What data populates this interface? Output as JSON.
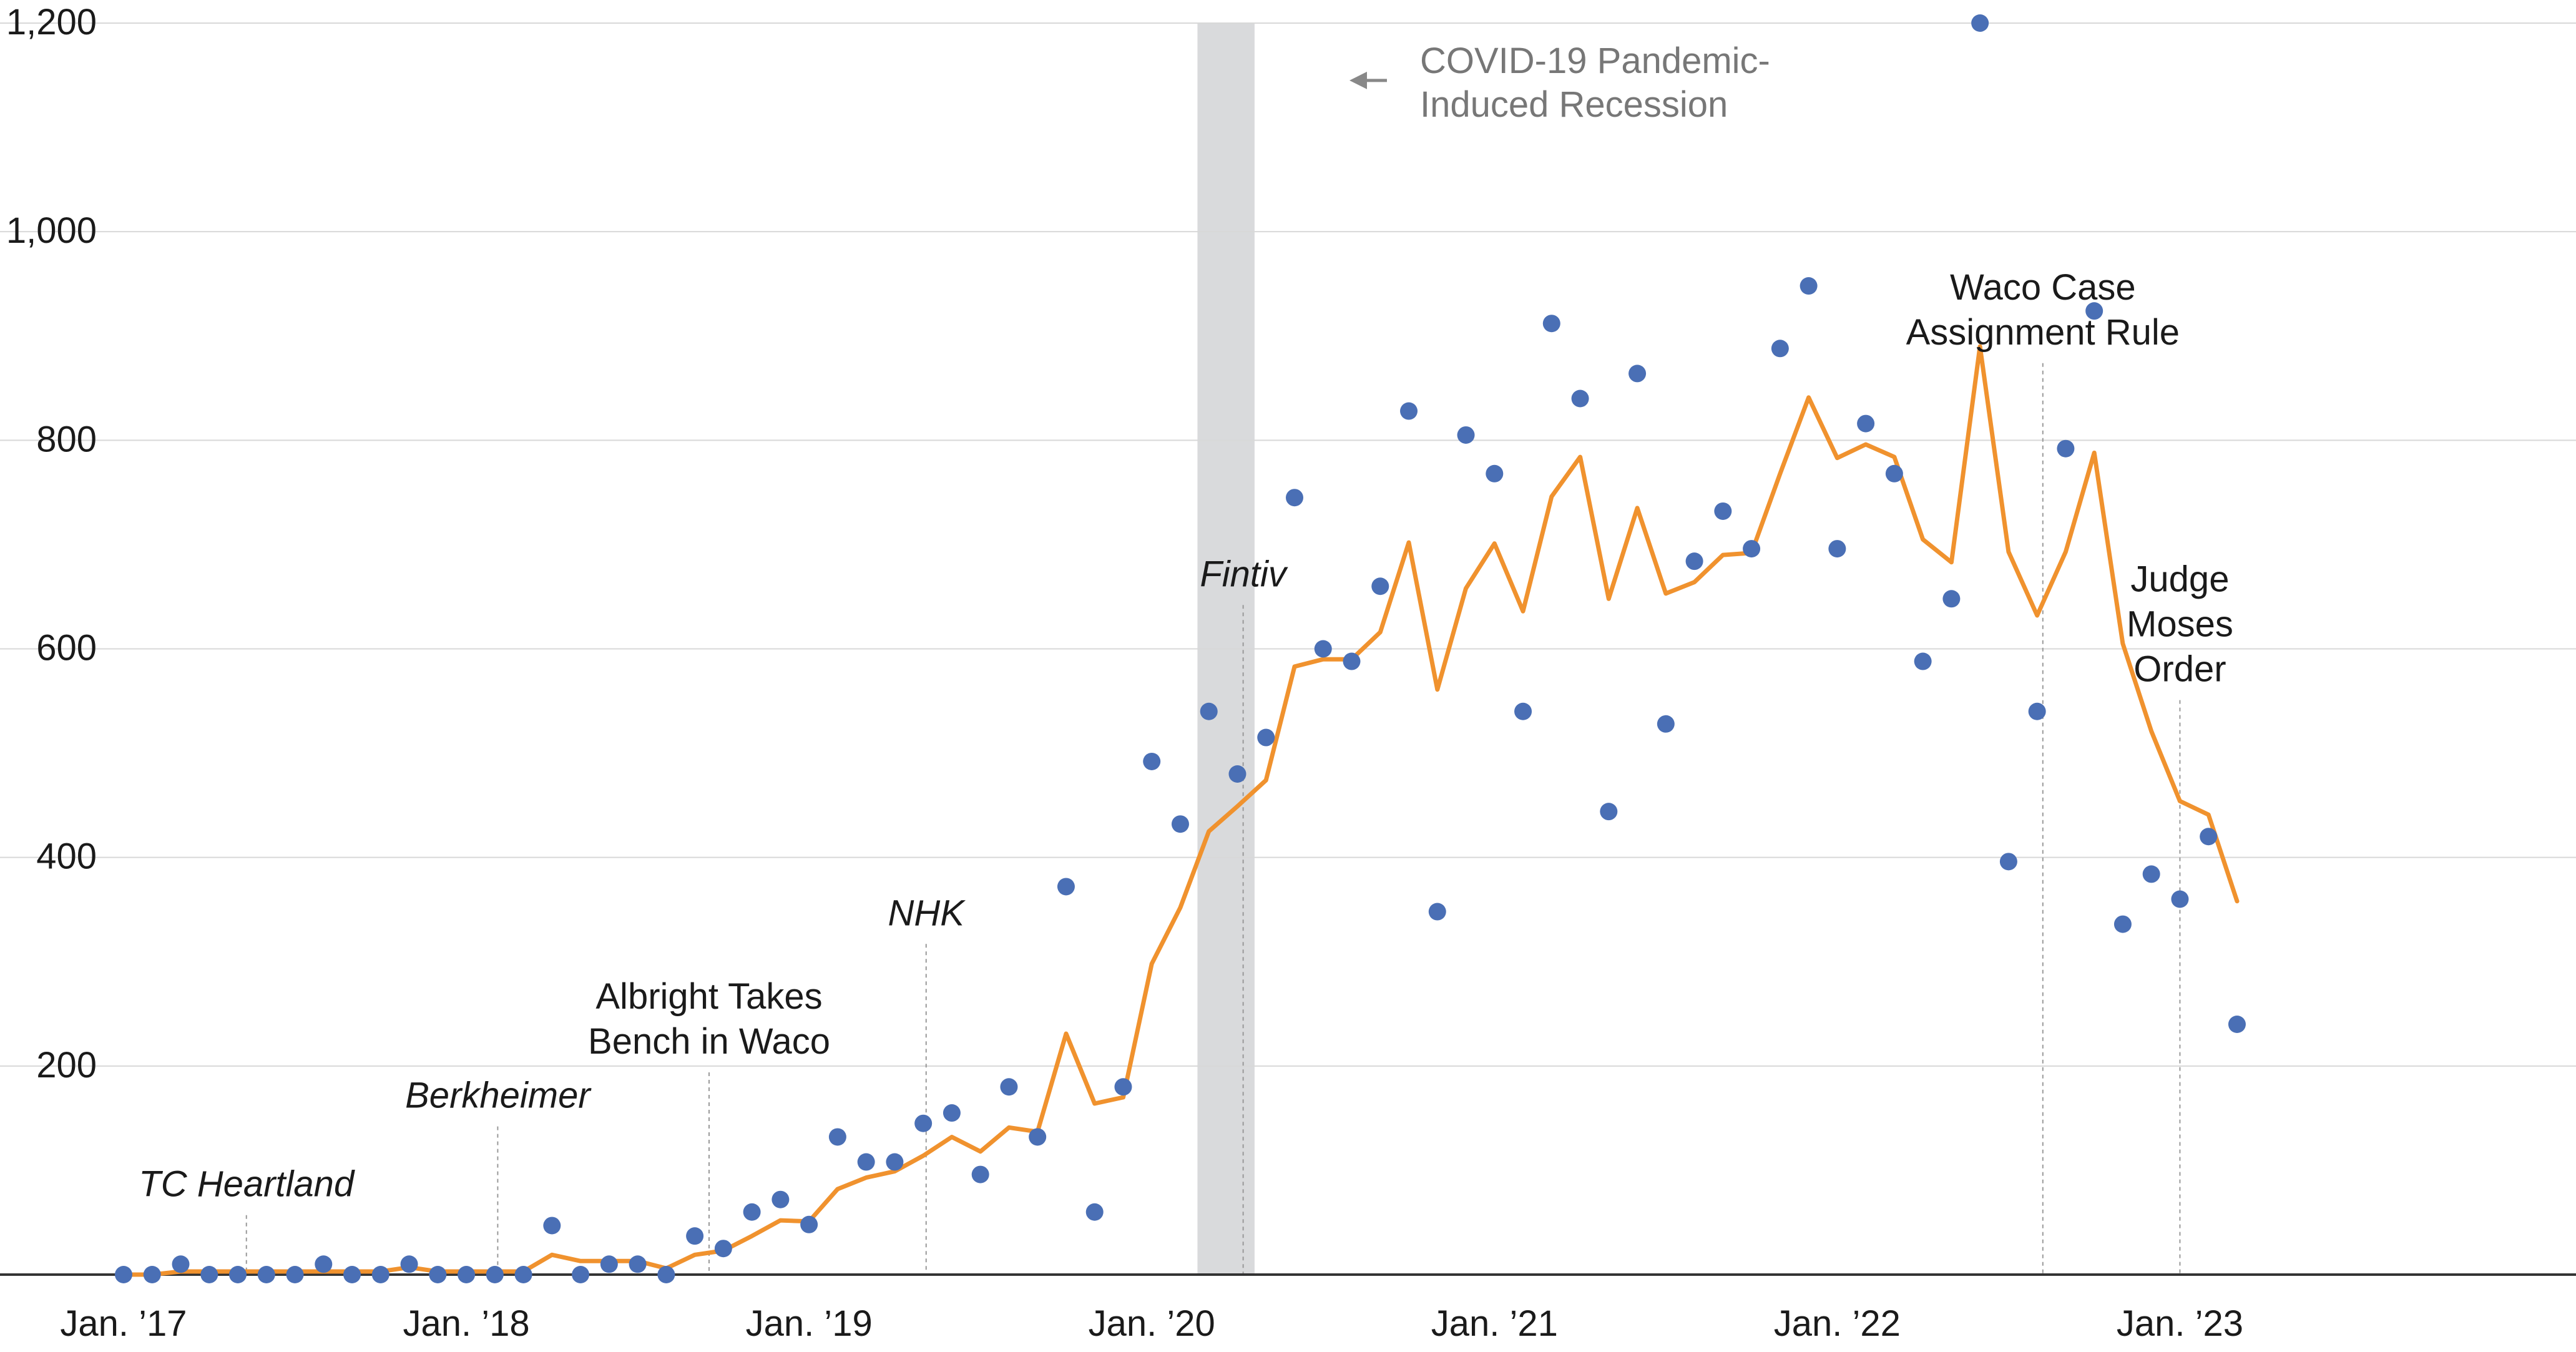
{
  "chart_data": {
    "type": "line",
    "title": "",
    "xlabel": "",
    "ylabel": "",
    "ylim": [
      0,
      1200
    ],
    "yticks": [
      200,
      400,
      600,
      800,
      1000,
      1200
    ],
    "ytick_labels": [
      "200",
      "400",
      "600",
      "800",
      "1,000",
      "1,200"
    ],
    "xlim": [
      0,
      82
    ],
    "xticks": [
      0,
      12,
      24,
      36,
      48,
      60,
      72
    ],
    "xtick_labels": [
      "Jan. ’17",
      "Jan. ’18",
      "Jan. ’19",
      "Jan. ’20",
      "Jan. ’21",
      "Jan. ’22",
      "Jan. ’23"
    ],
    "grid": true,
    "legend": "none",
    "colors": {
      "points": "#4a6fb5",
      "line": "#f0922e",
      "recession": "#d9dadc",
      "grid": "#d8d8d8",
      "axis": "#333333",
      "annotation_line": "#999999",
      "recession_text": "#777777"
    },
    "series": [
      {
        "kind": "scatter",
        "values": [
          0,
          0,
          10,
          0,
          0,
          0,
          0,
          10,
          0,
          0,
          10,
          0,
          0,
          0,
          0,
          47,
          0,
          10,
          10,
          0,
          37,
          25,
          60,
          72,
          48,
          132,
          108,
          108,
          145,
          155,
          96,
          180,
          132,
          372,
          60,
          180,
          492,
          432,
          540,
          480,
          515,
          745,
          600,
          588,
          660,
          828,
          348,
          805,
          768,
          540,
          912,
          840,
          444,
          864,
          528,
          684,
          732,
          696,
          888,
          948,
          696,
          816,
          768,
          588,
          648,
          1200,
          396,
          540,
          792,
          924,
          336,
          384,
          360,
          420,
          240
        ]
      },
      {
        "kind": "line",
        "values": [
          0,
          0,
          3,
          3,
          3,
          3,
          3,
          3,
          3,
          3,
          7,
          3,
          3,
          3,
          3,
          19,
          13,
          13,
          13,
          6,
          19,
          23,
          37,
          52,
          51,
          82,
          93,
          99,
          114,
          132,
          118,
          141,
          137,
          231,
          164,
          170,
          298,
          352,
          425,
          449,
          474,
          583,
          590,
          590,
          616,
          702,
          561,
          658,
          701,
          636,
          746,
          784,
          648,
          735,
          653,
          664,
          690,
          692,
          768,
          841,
          783,
          796,
          784,
          705,
          683,
          890,
          693,
          632,
          693,
          788,
          605,
          521,
          454,
          441,
          358
        ]
      }
    ],
    "shaded_region": {
      "x": [
        37.6,
        39.6
      ],
      "label": "COVID-19 Pandemic-Induced Recession",
      "label_lines": [
        "COVID-19 Pandemic-",
        "Induced Recession"
      ]
    },
    "annotations": [
      {
        "lines": [
          "TC Heartland"
        ],
        "italic": true,
        "x": 4.3,
        "label_y": 75
      },
      {
        "lines": [
          "Berkheimer"
        ],
        "italic": true,
        "x": 13.1,
        "label_y": 160
      },
      {
        "lines": [
          "Albright Takes",
          "Bench in Waco"
        ],
        "italic": false,
        "x": 20.5,
        "label_y": 255
      },
      {
        "lines": [
          "NHK"
        ],
        "italic": true,
        "x": 28.1,
        "label_y": 335
      },
      {
        "lines": [
          "Fintiv"
        ],
        "italic": true,
        "x": 39.2,
        "label_y": 660
      },
      {
        "lines": [
          "Waco Case",
          "Assignment Rule"
        ],
        "italic": false,
        "x": 67.2,
        "label_y": 935
      },
      {
        "lines": [
          "Judge",
          "Moses",
          "Order"
        ],
        "italic": false,
        "x": 72.0,
        "label_y": 655
      }
    ]
  }
}
